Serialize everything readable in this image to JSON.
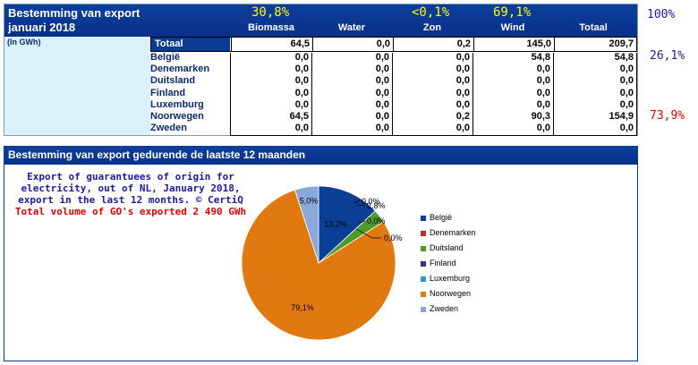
{
  "table": {
    "title": "Bestemming van export",
    "period": "januari 2018",
    "unit": "(In GWh)",
    "shares": {
      "biomassa": "30,8%",
      "zon": "<0,1%",
      "wind": "69,1%"
    },
    "columns": [
      "Biomassa",
      "Water",
      "Zon",
      "Wind",
      "Totaal"
    ],
    "total": {
      "label": "Totaal",
      "values": [
        "64,5",
        "0,0",
        "0,2",
        "145,0",
        "209,7"
      ]
    },
    "rows": [
      {
        "label": "België",
        "values": [
          "0,0",
          "0,0",
          "0,0",
          "54,8",
          "54,8"
        ]
      },
      {
        "label": "Denemarken",
        "values": [
          "0,0",
          "0,0",
          "0,0",
          "0,0",
          "0,0"
        ]
      },
      {
        "label": "Duitsland",
        "values": [
          "0,0",
          "0,0",
          "0,0",
          "0,0",
          "0,0"
        ]
      },
      {
        "label": "Finland",
        "values": [
          "0,0",
          "0,0",
          "0,0",
          "0,0",
          "0,0"
        ]
      },
      {
        "label": "Luxemburg",
        "values": [
          "0,0",
          "0,0",
          "0,0",
          "0,0",
          "0,0"
        ]
      },
      {
        "label": "Noorwegen",
        "values": [
          "64,5",
          "0,0",
          "0,2",
          "90,3",
          "154,9"
        ]
      },
      {
        "label": "Zweden",
        "values": [
          "0,0",
          "0,0",
          "0,0",
          "0,0",
          "0,0"
        ]
      }
    ]
  },
  "side_notes": {
    "total_pct": "100%",
    "belgie_pct": "26,1%",
    "noorwegen_pct": "73,9%"
  },
  "colors": {
    "header": "#0a3a92",
    "share": "#ffff00",
    "left_panel": "#d9f1f7",
    "blue_note": "#1a1aa6",
    "red_note": "#e00000"
  },
  "panel": {
    "title": "Bestemming van export gedurende de laatste 12 maanden",
    "note_lines": [
      "Export of guarantuees of origin for",
      "electricity, out of NL, January 2018,",
      "export in the last 12 months. © CertiQ"
    ],
    "note_total": "Total volume of GO's exported 2 490 GWh"
  },
  "chart_data": {
    "type": "pie",
    "slices": [
      {
        "name": "België",
        "value": 13.2,
        "label": "13,2%",
        "color": "#0a3f96"
      },
      {
        "name": "Denemarken",
        "value": 0.0,
        "label": "0,0%",
        "color": "#c0302a"
      },
      {
        "name": "Duitsland",
        "value": 2.8,
        "label": "2,8%",
        "color": "#4e9a2a"
      },
      {
        "name": "Finland",
        "value": 0.0,
        "label": "0,0%",
        "color": "#4a2a7a"
      },
      {
        "name": "Luxemburg",
        "value": 0.0,
        "label": "0,0%",
        "color": "#2a9ac8"
      },
      {
        "name": "Noorwegen",
        "value": 79.1,
        "label": "79,1%",
        "color": "#e07a10"
      },
      {
        "name": "Zweden",
        "value": 5.0,
        "label": "5,0%",
        "color": "#8aa8d8"
      }
    ],
    "legend_position": "right"
  }
}
